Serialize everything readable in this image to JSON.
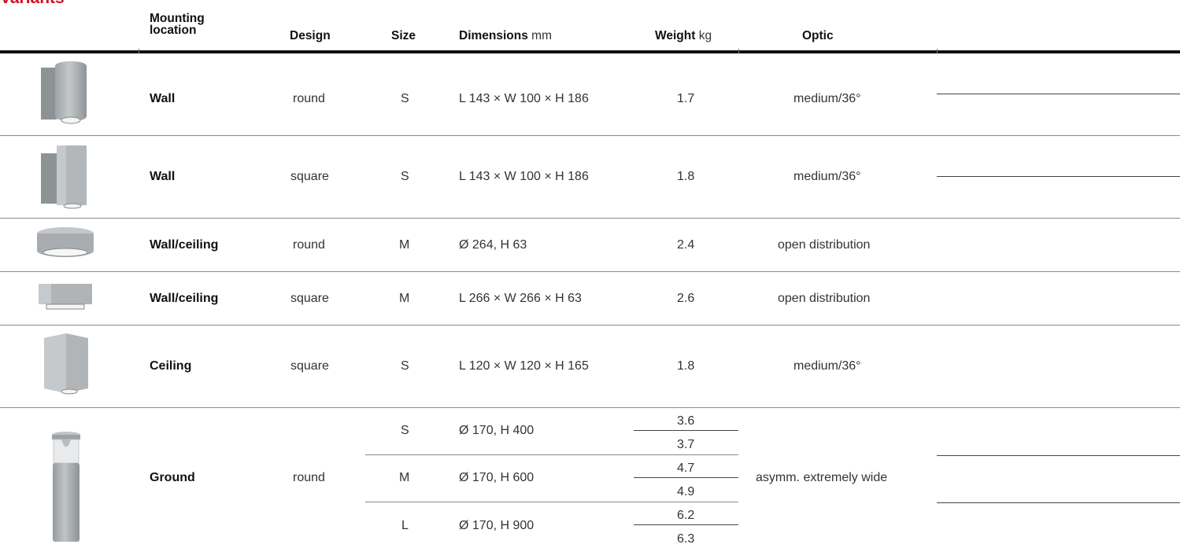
{
  "section_title": "Variants",
  "headers": {
    "mounting_line1": "Mounting",
    "mounting_line2": "location",
    "design": "Design",
    "size": "Size",
    "dimensions": "Dimensions",
    "dimensions_unit": "mm",
    "weight": "Weight",
    "weight_unit": "kg",
    "optic": "Optic"
  },
  "rows": [
    {
      "mounting": "Wall",
      "design": "round",
      "size": "S",
      "dimensions": "L 143 × W 100 × H 186",
      "weight": "1.7",
      "optic": "medium/36°",
      "thumbnail": "wall-round-luminaire-icon"
    },
    {
      "mounting": "Wall",
      "design": "square",
      "size": "S",
      "dimensions": "L 143 × W 100 × H 186",
      "weight": "1.8",
      "optic": "medium/36°",
      "thumbnail": "wall-square-luminaire-icon"
    },
    {
      "mounting": "Wall/ceiling",
      "design": "round",
      "size": "M",
      "dimensions": "Ø 264, H 63",
      "weight": "2.4",
      "optic": "open distribution",
      "thumbnail": "ceiling-round-luminaire-icon"
    },
    {
      "mounting": "Wall/ceiling",
      "design": "square",
      "size": "M",
      "dimensions": "L 266 × W 266 × H 63",
      "weight": "2.6",
      "optic": "open distribution",
      "thumbnail": "ceiling-square-luminaire-icon"
    },
    {
      "mounting": "Ceiling",
      "design": "square",
      "size": "S",
      "dimensions": "L 120 × W 120 × H 165",
      "weight": "1.8",
      "optic": "medium/36°",
      "thumbnail": "ceiling-square-downlight-icon"
    }
  ],
  "ground": {
    "mounting": "Ground",
    "design": "round",
    "optic": "asymm. extremely wide",
    "thumbnail": "bollard-luminaire-icon",
    "sizes": [
      {
        "size": "S",
        "dimensions": "Ø 170, H 400",
        "weights": [
          "3.6",
          "3.7"
        ]
      },
      {
        "size": "M",
        "dimensions": "Ø 170, H 600",
        "weights": [
          "4.7",
          "4.9"
        ]
      },
      {
        "size": "L",
        "dimensions": "Ø 170, H 900",
        "weights": [
          "6.2",
          "6.3"
        ]
      }
    ]
  },
  "colors": {
    "accent": "#d4101f",
    "rule": "#8a8a8a",
    "luminaire": "#a7abae"
  }
}
